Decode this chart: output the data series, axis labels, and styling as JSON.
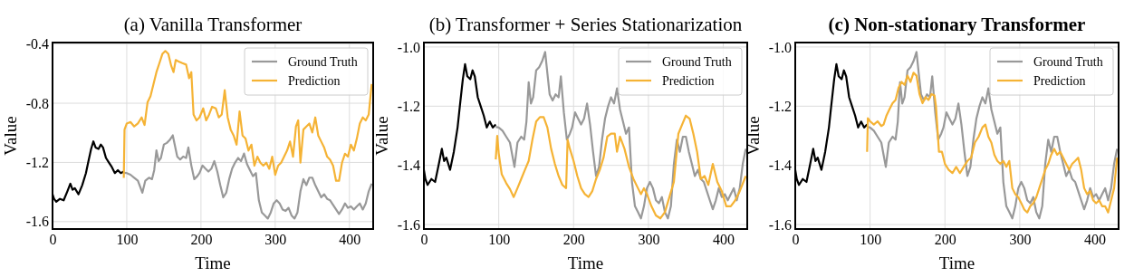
{
  "chart_data": [
    {
      "type": "line",
      "title": "(a) Vanilla Transformer",
      "xlabel": "Time",
      "ylabel": "Value",
      "xlim": [
        0,
        432
      ],
      "xticks": [
        0,
        100,
        200,
        300,
        400
      ],
      "ylim": [
        -1.65,
        -0.39
      ],
      "yticks": [
        -1.6,
        -1.2,
        -0.8,
        -0.4
      ],
      "grid": true,
      "legend": "top right",
      "series": [
        {
          "color": "#000000",
          "x": [
            0,
            2,
            5,
            10,
            15,
            20,
            24,
            27,
            30,
            35,
            40,
            45,
            48,
            52,
            55,
            58,
            62,
            65,
            68,
            72,
            76,
            80,
            84,
            88,
            92,
            96
          ],
          "values": [
            -1.415,
            -1.446,
            -1.466,
            -1.446,
            -1.456,
            -1.395,
            -1.344,
            -1.385,
            -1.374,
            -1.415,
            -1.354,
            -1.272,
            -1.201,
            -1.109,
            -1.058,
            -1.099,
            -1.109,
            -1.079,
            -1.099,
            -1.17,
            -1.201,
            -1.232,
            -1.272,
            -1.252,
            -1.272,
            -1.262
          ]
        },
        {
          "name": "Ground Truth",
          "color": "#999999",
          "x": [
            96,
            100,
            105,
            110,
            115,
            118,
            121,
            125,
            130,
            134,
            137,
            140,
            143,
            146,
            150,
            154,
            158,
            162,
            165,
            168,
            172,
            176,
            180,
            183,
            187,
            191,
            195,
            198,
            202,
            206,
            210,
            214,
            218,
            222,
            226,
            230,
            234,
            238,
            242,
            246,
            250,
            254,
            258,
            262,
            266,
            270,
            274,
            278,
            282,
            286,
            290,
            294,
            298,
            302,
            306,
            310,
            314,
            318,
            322,
            326,
            330,
            334,
            338,
            342,
            346,
            350,
            354,
            358,
            362,
            366,
            370,
            374,
            378,
            382,
            386,
            390,
            394,
            398,
            402,
            406,
            410,
            414,
            418,
            422,
            426,
            430
          ],
          "values": [
            -1.27,
            -1.272,
            -1.283,
            -1.303,
            -1.323,
            -1.364,
            -1.405,
            -1.323,
            -1.303,
            -1.313,
            -1.252,
            -1.119,
            -1.191,
            -1.17,
            -1.079,
            -1.068,
            -1.048,
            -1.017,
            -1.089,
            -1.16,
            -1.181,
            -1.16,
            -1.17,
            -1.099,
            -1.221,
            -1.313,
            -1.293,
            -1.272,
            -1.221,
            -1.242,
            -1.262,
            -1.242,
            -1.191,
            -1.262,
            -1.354,
            -1.436,
            -1.405,
            -1.313,
            -1.242,
            -1.201,
            -1.17,
            -1.191,
            -1.14,
            -1.211,
            -1.252,
            -1.293,
            -1.272,
            -1.456,
            -1.538,
            -1.558,
            -1.579,
            -1.538,
            -1.477,
            -1.456,
            -1.477,
            -1.518,
            -1.528,
            -1.507,
            -1.558,
            -1.579,
            -1.538,
            -1.395,
            -1.313,
            -1.354,
            -1.303,
            -1.303,
            -1.354,
            -1.395,
            -1.436,
            -1.415,
            -1.446,
            -1.456,
            -1.487,
            -1.518,
            -1.548,
            -1.518,
            -1.477,
            -1.507,
            -1.497,
            -1.518,
            -1.497,
            -1.477,
            -1.518,
            -1.477,
            -1.395,
            -1.344
          ]
        },
        {
          "name": "Prediction",
          "color": "#f5b335",
          "x": [
            96,
            97,
            100,
            105,
            110,
            115,
            120,
            124,
            128,
            132,
            136,
            140,
            144,
            148,
            152,
            156,
            160,
            163,
            166,
            170,
            175,
            180,
            184,
            187,
            190,
            194,
            198,
            203,
            207,
            211,
            215,
            220,
            224,
            228,
            232,
            236,
            240,
            244,
            248,
            252,
            256,
            260,
            264,
            268,
            272,
            276,
            280,
            284,
            288,
            292,
            296,
            300,
            304,
            308,
            312,
            316,
            320,
            324,
            328,
            331,
            334,
            338,
            342,
            346,
            350,
            354,
            358,
            362,
            366,
            370,
            374,
            378,
            382,
            386,
            390,
            394,
            398,
            402,
            406,
            410,
            414,
            418,
            422,
            426,
            430
          ],
          "values": [
            -1.304,
            -0.978,
            -0.937,
            -0.927,
            -0.957,
            -0.937,
            -0.896,
            -0.947,
            -0.794,
            -0.753,
            -0.671,
            -0.59,
            -0.529,
            -0.467,
            -0.447,
            -0.467,
            -0.549,
            -0.59,
            -0.508,
            -0.518,
            -0.529,
            -0.539,
            -0.631,
            -0.59,
            -0.876,
            -0.916,
            -0.896,
            -0.835,
            -0.916,
            -0.876,
            -0.824,
            -0.835,
            -0.896,
            -0.876,
            -0.712,
            -0.896,
            -0.978,
            -1.018,
            -1.08,
            -0.855,
            -1.018,
            -1.039,
            -1.12,
            -1.08,
            -1.222,
            -1.161,
            -1.202,
            -1.222,
            -1.202,
            -1.243,
            -1.161,
            -1.284,
            -1.222,
            -1.202,
            -1.161,
            -1.12,
            -1.059,
            -1.161,
            -0.957,
            -0.916,
            -1.202,
            -0.978,
            -0.957,
            -0.937,
            -0.998,
            -0.896,
            -1.018,
            -1.059,
            -1.1,
            -1.161,
            -1.182,
            -1.222,
            -1.324,
            -1.324,
            -1.202,
            -1.141,
            -1.161,
            -1.08,
            -1.12,
            -1.039,
            -0.937,
            -0.896,
            -0.916,
            -0.876,
            -0.671
          ]
        }
      ]
    },
    {
      "type": "line",
      "title": "(b) Transformer + Series Stationarization",
      "xlabel": "Time",
      "ylabel": "Value",
      "xlim": [
        0,
        432
      ],
      "xticks": [
        0,
        100,
        200,
        300,
        400
      ],
      "ylim": [
        -1.615,
        -0.985
      ],
      "yticks": [
        -1.6,
        -1.4,
        -1.2,
        {
          "value": -1.0,
          "label": "-1.0"
        }
      ],
      "grid": true,
      "legend": "top right",
      "series": [
        {
          "color": "#000000",
          "x": [
            0,
            2,
            5,
            10,
            15,
            20,
            24,
            27,
            30,
            35,
            40,
            45,
            48,
            52,
            55,
            58,
            62,
            65,
            68,
            72,
            76,
            80,
            84,
            88,
            92,
            96
          ],
          "values": [
            -1.415,
            -1.446,
            -1.466,
            -1.446,
            -1.456,
            -1.395,
            -1.344,
            -1.385,
            -1.374,
            -1.415,
            -1.354,
            -1.272,
            -1.201,
            -1.109,
            -1.058,
            -1.099,
            -1.109,
            -1.079,
            -1.099,
            -1.17,
            -1.201,
            -1.232,
            -1.272,
            -1.252,
            -1.272,
            -1.262
          ]
        },
        {
          "name": "Ground Truth",
          "color": "#999999",
          "x": [
            96,
            100,
            105,
            110,
            115,
            118,
            121,
            125,
            130,
            134,
            137,
            140,
            143,
            146,
            150,
            154,
            158,
            162,
            165,
            168,
            172,
            176,
            180,
            183,
            187,
            191,
            195,
            198,
            202,
            206,
            210,
            214,
            218,
            222,
            226,
            230,
            234,
            238,
            242,
            246,
            250,
            254,
            258,
            262,
            266,
            270,
            274,
            278,
            282,
            286,
            290,
            294,
            298,
            302,
            306,
            310,
            314,
            318,
            322,
            326,
            330,
            334,
            338,
            342,
            346,
            350,
            354,
            358,
            362,
            366,
            370,
            374,
            378,
            382,
            386,
            390,
            394,
            398,
            402,
            406,
            410,
            414,
            418,
            422,
            426,
            430
          ],
          "values": [
            -1.27,
            -1.272,
            -1.283,
            -1.303,
            -1.323,
            -1.364,
            -1.405,
            -1.323,
            -1.303,
            -1.313,
            -1.252,
            -1.119,
            -1.191,
            -1.17,
            -1.079,
            -1.068,
            -1.048,
            -1.017,
            -1.089,
            -1.16,
            -1.181,
            -1.16,
            -1.17,
            -1.099,
            -1.221,
            -1.313,
            -1.293,
            -1.272,
            -1.221,
            -1.242,
            -1.262,
            -1.242,
            -1.191,
            -1.262,
            -1.354,
            -1.436,
            -1.405,
            -1.313,
            -1.242,
            -1.201,
            -1.17,
            -1.191,
            -1.14,
            -1.211,
            -1.252,
            -1.293,
            -1.272,
            -1.456,
            -1.538,
            -1.558,
            -1.579,
            -1.538,
            -1.477,
            -1.456,
            -1.477,
            -1.518,
            -1.528,
            -1.507,
            -1.558,
            -1.579,
            -1.538,
            -1.395,
            -1.313,
            -1.354,
            -1.303,
            -1.303,
            -1.354,
            -1.395,
            -1.436,
            -1.415,
            -1.446,
            -1.456,
            -1.487,
            -1.518,
            -1.548,
            -1.518,
            -1.477,
            -1.507,
            -1.497,
            -1.518,
            -1.497,
            -1.477,
            -1.518,
            -1.477,
            -1.395,
            -1.344
          ]
        },
        {
          "name": "Prediction",
          "color": "#f5b335",
          "x": [
            96,
            98,
            100,
            104,
            110,
            115,
            120,
            125,
            130,
            135,
            140,
            145,
            150,
            155,
            160,
            165,
            170,
            175,
            180,
            185,
            190,
            192,
            195,
            200,
            205,
            210,
            215,
            220,
            225,
            230,
            235,
            240,
            245,
            250,
            255,
            258,
            262,
            268,
            274,
            280,
            286,
            290,
            294,
            298,
            304,
            310,
            316,
            322,
            328,
            334,
            340,
            345,
            350,
            355,
            360,
            365,
            370,
            375,
            380,
            386,
            392,
            398,
            404,
            410,
            416,
            422,
            430
          ],
          "values": [
            -1.38,
            -1.3,
            -1.36,
            -1.43,
            -1.46,
            -1.48,
            -1.507,
            -1.477,
            -1.446,
            -1.415,
            -1.385,
            -1.313,
            -1.252,
            -1.237,
            -1.237,
            -1.272,
            -1.344,
            -1.395,
            -1.436,
            -1.466,
            -1.477,
            -1.313,
            -1.344,
            -1.385,
            -1.436,
            -1.477,
            -1.497,
            -1.507,
            -1.487,
            -1.446,
            -1.415,
            -1.374,
            -1.303,
            -1.293,
            -1.293,
            -1.354,
            -1.303,
            -1.344,
            -1.405,
            -1.446,
            -1.477,
            -1.497,
            -1.477,
            -1.497,
            -1.538,
            -1.569,
            -1.579,
            -1.558,
            -1.507,
            -1.456,
            -1.293,
            -1.262,
            -1.232,
            -1.242,
            -1.293,
            -1.354,
            -1.446,
            -1.436,
            -1.466,
            -1.395,
            -1.456,
            -1.487,
            -1.538,
            -1.538,
            -1.518,
            -1.487,
            -1.436
          ]
        }
      ]
    },
    {
      "type": "line",
      "title": "(c) Non-stationary Transformer",
      "xlabel": "Time",
      "ylabel": "Value",
      "xlim": [
        0,
        432
      ],
      "xticks": [
        0,
        100,
        200,
        300,
        400
      ],
      "ylim": [
        -1.615,
        -0.985
      ],
      "yticks": [
        -1.6,
        -1.4,
        -1.2,
        {
          "value": -1.0,
          "label": "-1.0"
        }
      ],
      "grid": true,
      "legend": "top right",
      "series": [
        {
          "color": "#000000",
          "x": [
            0,
            2,
            5,
            10,
            15,
            20,
            24,
            27,
            30,
            35,
            40,
            45,
            48,
            52,
            55,
            58,
            62,
            65,
            68,
            72,
            76,
            80,
            84,
            88,
            92,
            96
          ],
          "values": [
            -1.415,
            -1.446,
            -1.466,
            -1.446,
            -1.456,
            -1.395,
            -1.344,
            -1.385,
            -1.374,
            -1.415,
            -1.354,
            -1.272,
            -1.201,
            -1.109,
            -1.058,
            -1.099,
            -1.109,
            -1.079,
            -1.099,
            -1.17,
            -1.201,
            -1.232,
            -1.272,
            -1.252,
            -1.272,
            -1.262
          ]
        },
        {
          "name": "Ground Truth",
          "color": "#999999",
          "x": [
            96,
            100,
            105,
            110,
            115,
            118,
            121,
            125,
            130,
            134,
            137,
            140,
            143,
            146,
            150,
            154,
            158,
            162,
            165,
            168,
            172,
            176,
            180,
            183,
            187,
            191,
            195,
            198,
            202,
            206,
            210,
            214,
            218,
            222,
            226,
            230,
            234,
            238,
            242,
            246,
            250,
            254,
            258,
            262,
            266,
            270,
            274,
            278,
            282,
            286,
            290,
            294,
            298,
            302,
            306,
            310,
            314,
            318,
            322,
            326,
            330,
            334,
            338,
            342,
            346,
            350,
            354,
            358,
            362,
            366,
            370,
            374,
            378,
            382,
            386,
            390,
            394,
            398,
            402,
            406,
            410,
            414,
            418,
            422,
            426,
            430
          ],
          "values": [
            -1.27,
            -1.272,
            -1.283,
            -1.303,
            -1.323,
            -1.364,
            -1.405,
            -1.323,
            -1.303,
            -1.313,
            -1.252,
            -1.119,
            -1.191,
            -1.17,
            -1.079,
            -1.068,
            -1.048,
            -1.017,
            -1.089,
            -1.16,
            -1.181,
            -1.16,
            -1.17,
            -1.099,
            -1.221,
            -1.313,
            -1.293,
            -1.272,
            -1.221,
            -1.242,
            -1.262,
            -1.242,
            -1.191,
            -1.262,
            -1.354,
            -1.436,
            -1.405,
            -1.313,
            -1.242,
            -1.201,
            -1.17,
            -1.191,
            -1.14,
            -1.211,
            -1.252,
            -1.293,
            -1.272,
            -1.456,
            -1.538,
            -1.558,
            -1.579,
            -1.538,
            -1.477,
            -1.456,
            -1.477,
            -1.518,
            -1.528,
            -1.507,
            -1.558,
            -1.579,
            -1.538,
            -1.395,
            -1.313,
            -1.354,
            -1.303,
            -1.303,
            -1.354,
            -1.395,
            -1.436,
            -1.415,
            -1.446,
            -1.456,
            -1.487,
            -1.518,
            -1.548,
            -1.518,
            -1.477,
            -1.507,
            -1.497,
            -1.518,
            -1.497,
            -1.477,
            -1.518,
            -1.477,
            -1.395,
            -1.344
          ]
        },
        {
          "name": "Prediction",
          "color": "#f5b335",
          "x": [
            96,
            97,
            100,
            105,
            110,
            115,
            118,
            122,
            126,
            130,
            134,
            138,
            142,
            146,
            150,
            154,
            158,
            162,
            166,
            170,
            174,
            178,
            182,
            186,
            188,
            192,
            196,
            200,
            205,
            210,
            215,
            220,
            225,
            230,
            235,
            240,
            245,
            250,
            254,
            258,
            262,
            266,
            270,
            274,
            278,
            282,
            286,
            290,
            294,
            298,
            302,
            306,
            310,
            314,
            318,
            322,
            326,
            330,
            334,
            338,
            342,
            346,
            350,
            354,
            358,
            362,
            366,
            370,
            374,
            378,
            382,
            386,
            390,
            394,
            398,
            402,
            406,
            410,
            414,
            418,
            422,
            426,
            430
          ],
          "values": [
            -1.354,
            -1.241,
            -1.251,
            -1.262,
            -1.251,
            -1.267,
            -1.262,
            -1.231,
            -1.21,
            -1.19,
            -1.179,
            -1.138,
            -1.118,
            -1.128,
            -1.097,
            -1.118,
            -1.087,
            -1.097,
            -1.159,
            -1.19,
            -1.169,
            -1.179,
            -1.159,
            -1.164,
            -1.2,
            -1.354,
            -1.354,
            -1.395,
            -1.415,
            -1.426,
            -1.405,
            -1.426,
            -1.405,
            -1.385,
            -1.374,
            -1.323,
            -1.303,
            -1.272,
            -1.262,
            -1.303,
            -1.323,
            -1.364,
            -1.385,
            -1.395,
            -1.385,
            -1.405,
            -1.385,
            -1.477,
            -1.497,
            -1.508,
            -1.528,
            -1.549,
            -1.559,
            -1.538,
            -1.528,
            -1.508,
            -1.477,
            -1.446,
            -1.415,
            -1.395,
            -1.364,
            -1.344,
            -1.364,
            -1.354,
            -1.374,
            -1.395,
            -1.415,
            -1.395,
            -1.385,
            -1.374,
            -1.415,
            -1.477,
            -1.497,
            -1.487,
            -1.518,
            -1.528,
            -1.518,
            -1.538,
            -1.538,
            -1.559,
            -1.518,
            -1.477,
            -1.374
          ]
        }
      ]
    }
  ]
}
